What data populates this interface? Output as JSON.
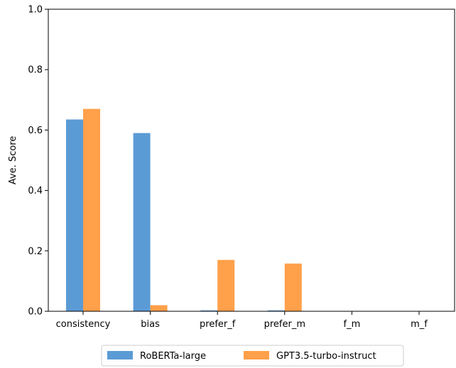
{
  "chart_data": {
    "type": "bar",
    "title": "",
    "xlabel": "",
    "ylabel": "Ave. Score",
    "categories": [
      "consistency",
      "bias",
      "prefer_f",
      "prefer_m",
      "f_m",
      "m_f"
    ],
    "series": [
      {
        "name": "RoBERTa-large",
        "values": [
          0.635,
          0.59,
          0.003,
          0.003,
          0.0,
          0.0
        ],
        "color": "#5b9bd5"
      },
      {
        "name": "GPT3.5-turbo-instruct",
        "values": [
          0.67,
          0.02,
          0.17,
          0.158,
          0.0,
          0.0
        ],
        "color": "#ffa04a"
      }
    ],
    "ylim": [
      0,
      1.0
    ],
    "yticks": [
      "0.0",
      "0.2",
      "0.4",
      "0.6",
      "0.8",
      "1.0"
    ],
    "grid": false,
    "legend_position": "bottom-center"
  }
}
